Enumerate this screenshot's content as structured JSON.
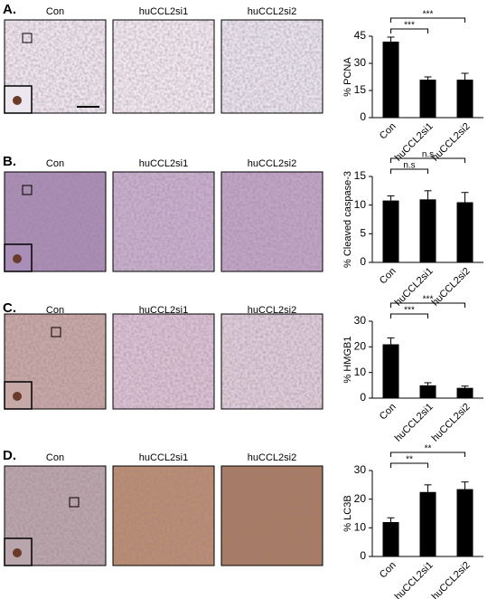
{
  "panels": [
    {
      "label": "A.",
      "images": [
        "Con",
        "huCCL2si1",
        "huCCL2si2"
      ]
    },
    {
      "label": "B.",
      "images": [
        "Con",
        "huCCL2si1",
        "huCCL2si2"
      ]
    },
    {
      "label": "C.",
      "images": [
        "Con",
        "huCCL2si1",
        "huCCL2si2"
      ]
    },
    {
      "label": "D.",
      "images": [
        "Con",
        "huCCL2si1",
        "huCCL2si2"
      ]
    }
  ],
  "chart_data": [
    {
      "type": "bar",
      "ylabel": "% PCNA",
      "categories": [
        "Con",
        "huCCL2si1",
        "huCCL2si2"
      ],
      "values": [
        42,
        21,
        21
      ],
      "errors": [
        2.5,
        1.5,
        3.5
      ],
      "color": "#000000",
      "ylim": [
        0,
        45
      ],
      "yticks": [
        0,
        15,
        30,
        45
      ],
      "significance": [
        "***",
        "***"
      ]
    },
    {
      "type": "bar",
      "ylabel": "% Cleaved caspase-3",
      "categories": [
        "Con",
        "huCCL2si1",
        "huCCL2si2"
      ],
      "values": [
        10.8,
        11,
        10.5
      ],
      "errors": [
        0.8,
        1.5,
        1.7
      ],
      "color": "#000000",
      "ylim": [
        0,
        15
      ],
      "yticks": [
        0,
        5,
        10,
        15
      ],
      "significance": [
        "n.s",
        "n.s"
      ]
    },
    {
      "type": "bar",
      "ylabel": "% HMGB1",
      "categories": [
        "Con",
        "huCCL2si1",
        "huCCL2si2"
      ],
      "values": [
        21,
        5,
        4
      ],
      "errors": [
        2.5,
        1,
        0.7
      ],
      "color": "#000000",
      "ylim": [
        0,
        30
      ],
      "yticks": [
        0,
        10,
        20,
        30
      ],
      "significance": [
        "***",
        "***"
      ]
    },
    {
      "type": "bar",
      "ylabel": "% LC3B",
      "categories": [
        "Con",
        "huCCL2si1",
        "huCCL2si2"
      ],
      "values": [
        12,
        22.5,
        23.5
      ],
      "errors": [
        1.5,
        2.5,
        2.5
      ],
      "color": "#000000",
      "ylim": [
        0,
        30
      ],
      "yticks": [
        0,
        10,
        20,
        30
      ],
      "significance": [
        "**",
        "**"
      ]
    }
  ]
}
